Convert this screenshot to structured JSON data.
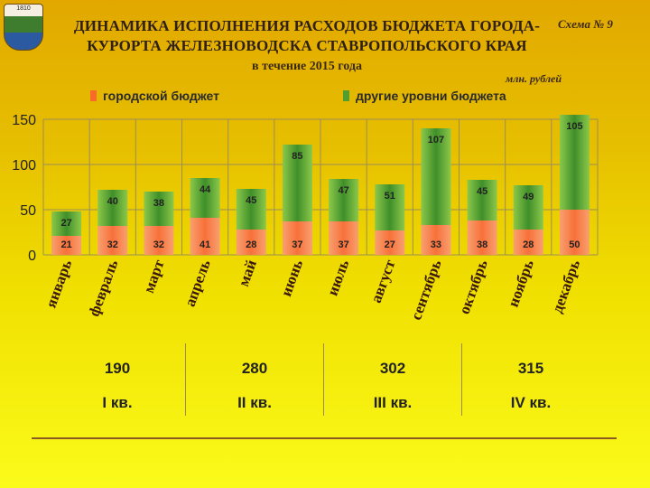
{
  "header": {
    "crest_year": "1810",
    "title_line1": "ДИНАМИКА ИСПОЛНЕНИЯ РАСХОДОВ БЮДЖЕТА ГОРОДА-",
    "title_line2": "КУРОРТА ЖЕЛЕЗНОВОДСКА СТАВРОПОЛЬСКОГО КРАЯ",
    "subtitle": "в течение 2015 года",
    "scheme": "Схема № 9",
    "units": "млн. рублей"
  },
  "colors": {
    "city": "#f86a2a",
    "other": "#4f9e2f"
  },
  "chart_data": {
    "type": "bar",
    "stacked": true,
    "ylim": [
      0,
      150
    ],
    "yticks": [
      0,
      50,
      100,
      150
    ],
    "grid": true,
    "legend_position": "top",
    "categories": [
      "январь",
      "февраль",
      "март",
      "апрель",
      "май",
      "июнь",
      "июль",
      "август",
      "сентябрь",
      "октябрь",
      "ноябрь",
      "декабрь"
    ],
    "series": [
      {
        "name": "городской бюджет",
        "values": [
          21,
          32,
          32,
          41,
          28,
          37,
          37,
          27,
          33,
          38,
          28,
          50
        ]
      },
      {
        "name": "другие уровни бюджета",
        "values": [
          27,
          40,
          38,
          44,
          45,
          85,
          47,
          51,
          107,
          45,
          49,
          105
        ]
      }
    ]
  },
  "quarters": [
    {
      "label": "I кв.",
      "total": "190"
    },
    {
      "label": "II кв.",
      "total": "280"
    },
    {
      "label": "III кв.",
      "total": "302"
    },
    {
      "label": "IV кв.",
      "total": "315"
    }
  ]
}
